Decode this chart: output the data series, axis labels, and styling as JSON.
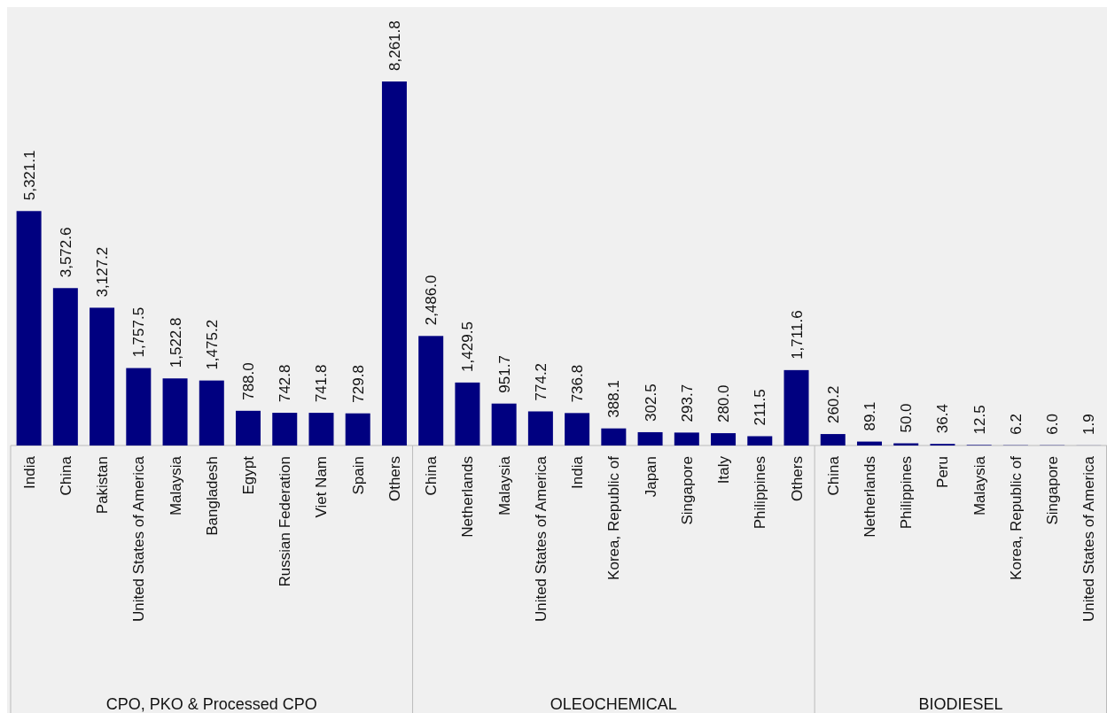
{
  "chart_data": [
    {
      "type": "bar",
      "xlabel": "CPO, PKO & Processed CPO",
      "categories": [
        "India",
        "China",
        "Pakistan",
        "United States of America",
        "Malaysia",
        "Bangladesh",
        "Egypt",
        "Russian Federation",
        "Viet Nam",
        "Spain",
        "Others"
      ],
      "values": [
        5321.1,
        3572.6,
        3127.2,
        1757.5,
        1522.8,
        1475.2,
        788.0,
        742.8,
        741.8,
        729.8,
        8261.8
      ],
      "value_labels": [
        "5,321.1",
        "3,572.6",
        "3,127.2",
        "1,757.5",
        "1,522.8",
        "1,475.2",
        "788.0",
        "742.8",
        "741.8",
        "729.8",
        "8,261.8"
      ],
      "color": "#000080",
      "tick_labels": "x"
    },
    {
      "type": "bar",
      "xlabel": "OLEOCHEMICAL",
      "categories": [
        "China",
        "Netherlands",
        "Malaysia",
        "United States of America",
        "India",
        "Korea, Republic of",
        "Japan",
        "Singapore",
        "Italy",
        "Philippines",
        "Others"
      ],
      "values": [
        2486.0,
        1429.5,
        951.7,
        774.2,
        736.8,
        388.1,
        302.5,
        293.7,
        280.0,
        211.5,
        1711.6
      ],
      "value_labels": [
        "2,486.0",
        "1,429.5",
        "951.7",
        "774.2",
        "736.8",
        "388.1",
        "302.5",
        "293.7",
        "280.0",
        "211.5",
        "1,711.6"
      ],
      "color": "#000080",
      "tick_labels": "x"
    },
    {
      "type": "bar",
      "xlabel": "BIODIESEL",
      "categories": [
        "China",
        "Netherlands",
        "Philippines",
        "Peru",
        "Malaysia",
        "Korea, Republic of",
        "Singapore",
        "United States of America"
      ],
      "values": [
        260.2,
        89.1,
        50.0,
        36.4,
        12.5,
        6.2,
        6.0,
        1.9
      ],
      "value_labels": [
        "260.2",
        "89.1",
        "50.0",
        "36.4",
        "12.5",
        "6.2",
        "6.0",
        "1.9"
      ],
      "color": "#000080",
      "tick_labels": "x"
    }
  ]
}
